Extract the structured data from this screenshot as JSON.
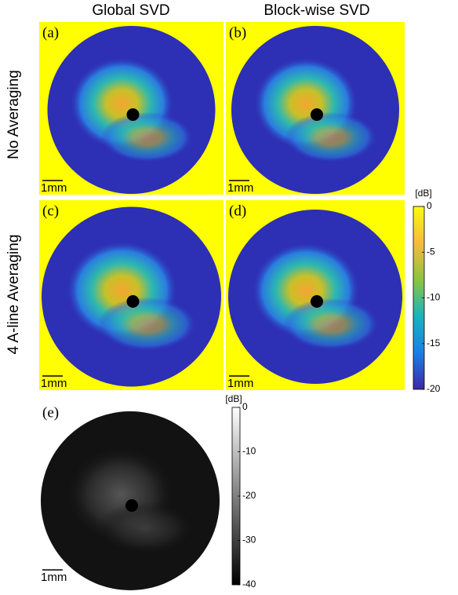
{
  "column_headers": [
    "Global SVD",
    "Block-wise SVD"
  ],
  "row_labels": [
    "No Averaging",
    "4 A-line Averaging"
  ],
  "panels": [
    {
      "label": "(a)",
      "scale_bar": "1mm"
    },
    {
      "label": "(b)",
      "scale_bar": "1mm"
    },
    {
      "label": "(c)",
      "scale_bar": "1mm"
    },
    {
      "label": "(d)",
      "scale_bar": "1mm"
    },
    {
      "label": "(e)",
      "scale_bar": "1mm"
    }
  ],
  "colorbar": {
    "unit": "[dB]",
    "ticks": [
      0,
      -5,
      -10,
      -15,
      -20
    ]
  },
  "grayscale_colorbar": {
    "unit": "[dB]",
    "ticks": [
      0,
      -10,
      -20,
      -30,
      -40
    ]
  }
}
